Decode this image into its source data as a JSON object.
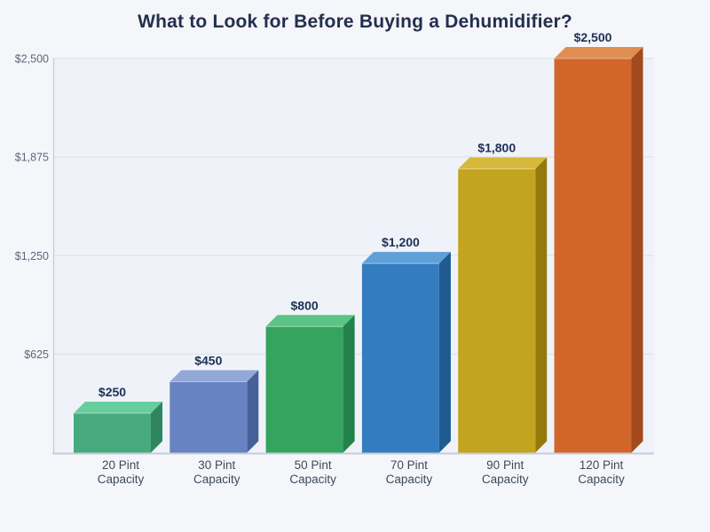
{
  "page": {
    "background_color": "#f4f6fa"
  },
  "chart_data": {
    "type": "bar",
    "style": "3d-bars",
    "title": "What to Look for Before Buying a Dehumidifier?",
    "title_color": "#232f4e",
    "categories": [
      "20 Pint Capacity",
      "30 Pint Capacity",
      "50 Pint Capacity",
      "70 Pint Capacity",
      "90 Pint Capacity",
      "120 Pint Capacity"
    ],
    "values": [
      250,
      450,
      800,
      1200,
      1800,
      2500
    ],
    "value_labels": [
      "$250",
      "$450",
      "$800",
      "$1,200",
      "$1,800",
      "$2,500"
    ],
    "value_label_color": "#1f3054",
    "y_ticks": [
      {
        "value": 625,
        "label": "$625"
      },
      {
        "value": 1250,
        "label": "$1,250"
      },
      {
        "value": 1875,
        "label": "$1,875"
      },
      {
        "value": 2500,
        "label": "$2,500"
      }
    ],
    "ylim": [
      0,
      2500
    ],
    "xlabel": "",
    "ylabel": "",
    "grid": true,
    "legend": false,
    "tick_label_color": "#5d6878",
    "category_label_color": "#3e4a5b",
    "grid_color": "#dde2ea",
    "axis_color": "#c6ccd8",
    "plot_background": "#eff3f9",
    "bar_colors": [
      {
        "front": "#47aa7e",
        "top": "#68cd9c",
        "side": "#2e8560"
      },
      {
        "front": "#6783c1",
        "top": "#94a8d8",
        "side": "#46619a"
      },
      {
        "front": "#35a45f",
        "top": "#5cc384",
        "side": "#23814a"
      },
      {
        "front": "#337cc0",
        "top": "#5fa0d9",
        "side": "#1f5a91"
      },
      {
        "front": "#c2a41f",
        "top": "#d6b93a",
        "side": "#94790d"
      },
      {
        "front": "#d2652a",
        "top": "#e08d52",
        "side": "#a34a1c"
      }
    ]
  }
}
